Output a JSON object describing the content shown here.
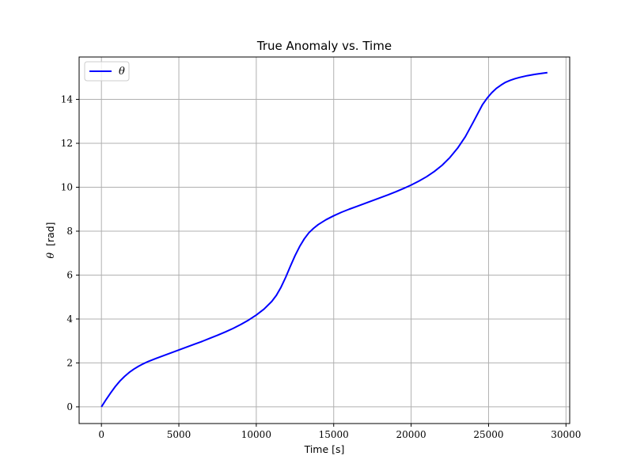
{
  "chart_data": {
    "type": "line",
    "title": "True Anomaly vs. Time",
    "xlabel": "Time [s]",
    "ylabel_symbol": "θ",
    "ylabel_unit": "[rad]",
    "xlim": [
      -1440,
      30240
    ],
    "ylim": [
      -0.76,
      15.93
    ],
    "xticks": [
      0,
      5000,
      10000,
      15000,
      20000,
      25000,
      30000
    ],
    "yticks": [
      0,
      2,
      4,
      6,
      8,
      10,
      12,
      14
    ],
    "grid": true,
    "legend_position": "top-left",
    "series": [
      {
        "name": "θ",
        "color": "#0000ff",
        "x": [
          0,
          300,
          600,
          900,
          1200,
          1500,
          1800,
          2100,
          2400,
          2700,
          3000,
          3500,
          4000,
          4500,
          5000,
          5500,
          6000,
          6500,
          7000,
          7500,
          8000,
          8500,
          9000,
          9500,
          10000,
          10500,
          11000,
          11300,
          11600,
          11900,
          12200,
          12500,
          12800,
          13100,
          13400,
          13700,
          14000,
          14500,
          15000,
          15500,
          16000,
          16500,
          17000,
          17500,
          18000,
          18500,
          19000,
          19500,
          20000,
          20500,
          21000,
          21500,
          22000,
          22500,
          23000,
          23500,
          24000,
          24300,
          24600,
          24900,
          25200,
          25500,
          25800,
          26100,
          26400,
          26700,
          27000,
          27500,
          28000,
          28500,
          28800
        ],
        "y": [
          0.0,
          0.33,
          0.64,
          0.93,
          1.18,
          1.39,
          1.57,
          1.72,
          1.85,
          1.96,
          2.06,
          2.2,
          2.33,
          2.46,
          2.59,
          2.72,
          2.85,
          2.98,
          3.12,
          3.26,
          3.41,
          3.57,
          3.75,
          3.95,
          4.18,
          4.45,
          4.8,
          5.08,
          5.45,
          5.9,
          6.4,
          6.88,
          7.3,
          7.65,
          7.93,
          8.13,
          8.3,
          8.52,
          8.7,
          8.86,
          9.0,
          9.13,
          9.26,
          9.39,
          9.52,
          9.65,
          9.79,
          9.94,
          10.1,
          10.28,
          10.48,
          10.72,
          11.0,
          11.35,
          11.78,
          12.3,
          12.95,
          13.35,
          13.75,
          14.05,
          14.3,
          14.5,
          14.65,
          14.78,
          14.87,
          14.94,
          15.0,
          15.08,
          15.14,
          15.19,
          15.22
        ]
      }
    ]
  }
}
